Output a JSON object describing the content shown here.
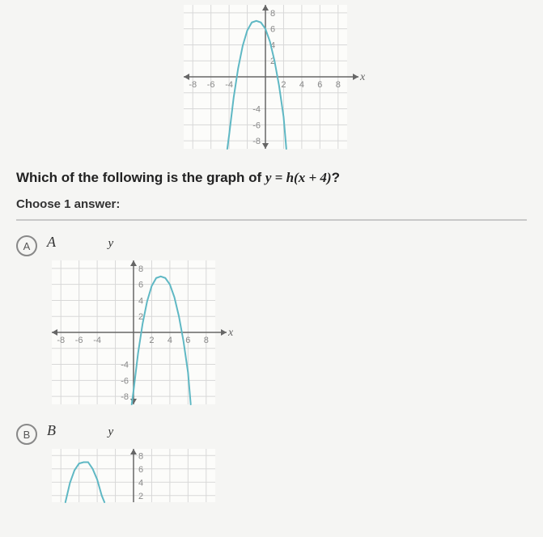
{
  "top_chart": {
    "type": "line",
    "x_axis_label": "x",
    "y_axis_label": "",
    "xlim": [
      -9,
      9
    ],
    "ylim": [
      -9,
      9
    ],
    "x_ticks": [
      -8,
      -6,
      -4,
      2,
      4,
      6,
      8
    ],
    "y_ticks_pos": [
      2,
      4,
      6,
      8
    ],
    "y_ticks_neg": [
      -4,
      -6,
      -8
    ],
    "grid_color": "#d8d8d8",
    "axis_color": "#666666",
    "tick_label_color": "#888888",
    "tick_fontsize": 11,
    "background_color": "#fcfcfa",
    "curve_color": "#5fb8c4",
    "curve_width": 2,
    "curve_points": [
      [
        -4.2,
        -9
      ],
      [
        -4,
        -7.3
      ],
      [
        -3.5,
        -2.6
      ],
      [
        -3,
        1.1
      ],
      [
        -2.5,
        3.9
      ],
      [
        -2,
        5.8
      ],
      [
        -1.5,
        6.8
      ],
      [
        -1,
        7.0
      ],
      [
        -0.5,
        6.8
      ],
      [
        0,
        6.0
      ],
      [
        0.5,
        4.4
      ],
      [
        1,
        2.0
      ],
      [
        1.5,
        -1.1
      ],
      [
        2,
        -5.0
      ],
      [
        2.3,
        -9
      ]
    ]
  },
  "question": {
    "prefix": "Which of the following is the graph of ",
    "equation": "y = h(x + 4)",
    "suffix": "?"
  },
  "choose_text": "Choose 1 answer:",
  "options": {
    "A": {
      "letter": "A",
      "label": "A",
      "chart": {
        "type": "line",
        "x_axis_label": "x",
        "y_axis_label": "y",
        "xlim": [
          -9,
          9
        ],
        "ylim": [
          -9,
          9
        ],
        "x_ticks": [
          -8,
          -6,
          -4,
          2,
          4,
          6,
          8
        ],
        "y_ticks_pos": [
          2,
          4,
          6,
          8
        ],
        "y_ticks_neg": [
          -4,
          -6,
          -8
        ],
        "grid_color": "#d8d8d8",
        "axis_color": "#666666",
        "tick_label_color": "#888888",
        "tick_fontsize": 11,
        "background_color": "#fcfcfa",
        "curve_color": "#5fb8c4",
        "curve_width": 2,
        "curve_points": [
          [
            -0.2,
            -9
          ],
          [
            0,
            -7.3
          ],
          [
            0.5,
            -2.6
          ],
          [
            1,
            1.1
          ],
          [
            1.5,
            3.9
          ],
          [
            2,
            5.8
          ],
          [
            2.5,
            6.8
          ],
          [
            3,
            7.0
          ],
          [
            3.5,
            6.8
          ],
          [
            4,
            6.0
          ],
          [
            4.5,
            4.4
          ],
          [
            5,
            2.0
          ],
          [
            5.5,
            -1.1
          ],
          [
            6,
            -5.0
          ],
          [
            6.3,
            -9
          ]
        ]
      }
    },
    "B": {
      "letter": "B",
      "label": "B",
      "chart": {
        "type": "line",
        "x_axis_label": "",
        "y_axis_label": "y",
        "xlim": [
          -9,
          9
        ],
        "ylim": [
          1,
          9
        ],
        "x_ticks": [],
        "y_ticks_pos": [
          2,
          4,
          6,
          8
        ],
        "y_ticks_neg": [],
        "grid_color": "#d8d8d8",
        "axis_color": "#666666",
        "tick_label_color": "#888888",
        "tick_fontsize": 11,
        "background_color": "#fcfcfa",
        "curve_color": "#5fb8c4",
        "curve_width": 2,
        "curve_points": [
          [
            -7.5,
            1
          ],
          [
            -7,
            3.9
          ],
          [
            -6.5,
            5.8
          ],
          [
            -6,
            6.8
          ],
          [
            -5.5,
            7.0
          ],
          [
            -5,
            7.0
          ],
          [
            -4.5,
            6.0
          ],
          [
            -4,
            4.4
          ],
          [
            -3.5,
            2.0
          ],
          [
            -3.2,
            1
          ]
        ]
      }
    }
  },
  "colors": {
    "page_bg": "#f5f5f3",
    "text": "#333333",
    "divider": "#c8c8c8",
    "circle_border": "#888888"
  }
}
